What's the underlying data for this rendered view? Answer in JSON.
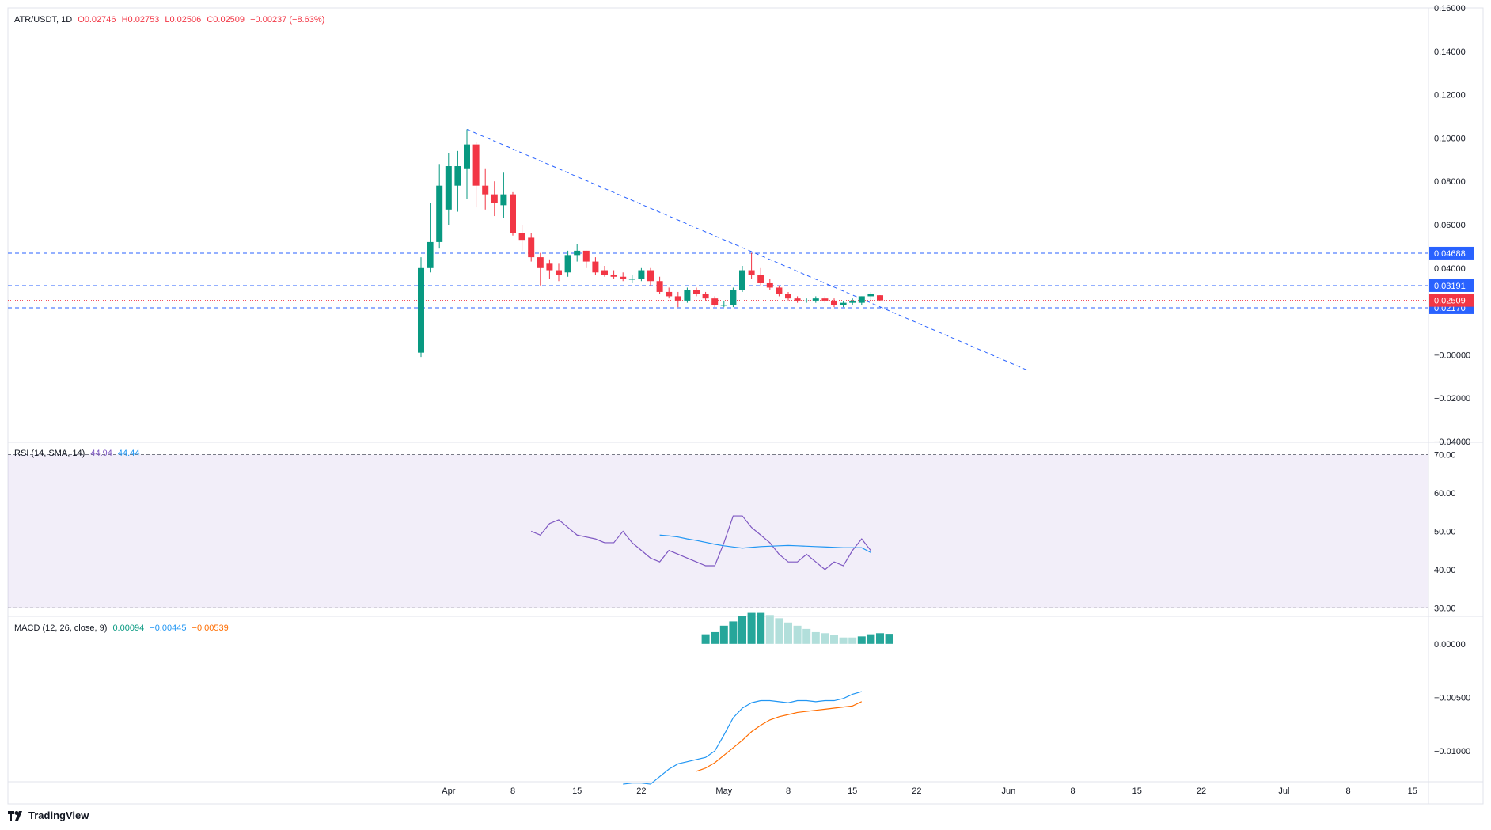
{
  "header": {
    "symbol": "ATR/USDT, 1D",
    "open": "O0.02746",
    "high": "H0.02753",
    "low": "L0.02506",
    "close": "C0.02509",
    "change": "−0.00237 (−8.63%)"
  },
  "rsi_legend": {
    "label": "RSI (14, SMA, 14)",
    "value": "44.94",
    "sma": "44.44"
  },
  "macd_legend": {
    "label": "MACD (12, 26, close, 9)",
    "hist": "0.00094",
    "macd": "−0.00445",
    "signal": "−0.00539"
  },
  "brand": "TradingView",
  "colors": {
    "up": "#089981",
    "down": "#f23645",
    "rsi": "#7e57c2",
    "rsi_sma": "#2196f3",
    "macd": "#2196f3",
    "signal": "#ff6d00",
    "hist_strong": "#26a69a",
    "hist_weak": "#b2dfdb",
    "level_line": "#2962ff",
    "rsi_band": "#7e57c2"
  },
  "chart_data": [
    {
      "type": "candlestick",
      "title": "ATR/USDT, 1D",
      "x_ticks": [
        "Apr",
        "8",
        "15",
        "22",
        "May",
        "8",
        "15",
        "22",
        "Jun",
        "8",
        "15",
        "22",
        "Jul",
        "8",
        "15"
      ],
      "y_ticks": [
        "0.16000",
        "0.14000",
        "0.12000",
        "0.10000",
        "0.08000",
        "0.06000",
        "0.04000",
        "−0.00000",
        "−0.02000",
        "−0.04000"
      ],
      "ylim": [
        -0.04,
        0.16
      ],
      "candles": [
        {
          "date": "Mar 29",
          "o": 0.001,
          "h": 0.045,
          "l": -0.001,
          "c": 0.04
        },
        {
          "date": "Mar 30",
          "o": 0.04,
          "h": 0.07,
          "l": 0.038,
          "c": 0.052
        },
        {
          "date": "Mar 31",
          "o": 0.052,
          "h": 0.088,
          "l": 0.049,
          "c": 0.078
        },
        {
          "date": "Apr 1",
          "o": 0.067,
          "h": 0.093,
          "l": 0.06,
          "c": 0.087
        },
        {
          "date": "Apr 2",
          "o": 0.078,
          "h": 0.094,
          "l": 0.066,
          "c": 0.087
        },
        {
          "date": "Apr 3",
          "o": 0.086,
          "h": 0.104,
          "l": 0.072,
          "c": 0.097
        },
        {
          "date": "Apr 4",
          "o": 0.097,
          "h": 0.098,
          "l": 0.068,
          "c": 0.078
        },
        {
          "date": "Apr 5",
          "o": 0.078,
          "h": 0.086,
          "l": 0.067,
          "c": 0.074
        },
        {
          "date": "Apr 6",
          "o": 0.074,
          "h": 0.08,
          "l": 0.064,
          "c": 0.07
        },
        {
          "date": "Apr 7",
          "o": 0.069,
          "h": 0.084,
          "l": 0.063,
          "c": 0.074
        },
        {
          "date": "Apr 8",
          "o": 0.074,
          "h": 0.075,
          "l": 0.055,
          "c": 0.056
        },
        {
          "date": "Apr 9",
          "o": 0.056,
          "h": 0.06,
          "l": 0.048,
          "c": 0.053
        },
        {
          "date": "Apr 10",
          "o": 0.054,
          "h": 0.056,
          "l": 0.043,
          "c": 0.045
        },
        {
          "date": "Apr 11",
          "o": 0.045,
          "h": 0.047,
          "l": 0.032,
          "c": 0.04
        },
        {
          "date": "Apr 12",
          "o": 0.042,
          "h": 0.044,
          "l": 0.035,
          "c": 0.039
        },
        {
          "date": "Apr 13",
          "o": 0.039,
          "h": 0.042,
          "l": 0.034,
          "c": 0.037
        },
        {
          "date": "Apr 14",
          "o": 0.038,
          "h": 0.048,
          "l": 0.036,
          "c": 0.046
        },
        {
          "date": "Apr 15",
          "o": 0.046,
          "h": 0.051,
          "l": 0.043,
          "c": 0.048
        },
        {
          "date": "Apr 16",
          "o": 0.048,
          "h": 0.048,
          "l": 0.04,
          "c": 0.043
        },
        {
          "date": "Apr 17",
          "o": 0.043,
          "h": 0.045,
          "l": 0.037,
          "c": 0.038
        },
        {
          "date": "Apr 18",
          "o": 0.039,
          "h": 0.041,
          "l": 0.036,
          "c": 0.037
        },
        {
          "date": "Apr 19",
          "o": 0.037,
          "h": 0.039,
          "l": 0.035,
          "c": 0.036
        },
        {
          "date": "Apr 20",
          "o": 0.036,
          "h": 0.038,
          "l": 0.034,
          "c": 0.035
        },
        {
          "date": "Apr 21",
          "o": 0.035,
          "h": 0.037,
          "l": 0.033,
          "c": 0.035
        },
        {
          "date": "Apr 22",
          "o": 0.035,
          "h": 0.04,
          "l": 0.034,
          "c": 0.039
        },
        {
          "date": "Apr 23",
          "o": 0.039,
          "h": 0.04,
          "l": 0.032,
          "c": 0.034
        },
        {
          "date": "Apr 24",
          "o": 0.034,
          "h": 0.036,
          "l": 0.028,
          "c": 0.029
        },
        {
          "date": "Apr 25",
          "o": 0.029,
          "h": 0.031,
          "l": 0.026,
          "c": 0.027
        },
        {
          "date": "Apr 26",
          "o": 0.027,
          "h": 0.029,
          "l": 0.022,
          "c": 0.025
        },
        {
          "date": "Apr 27",
          "o": 0.025,
          "h": 0.031,
          "l": 0.024,
          "c": 0.03
        },
        {
          "date": "Apr 28",
          "o": 0.03,
          "h": 0.031,
          "l": 0.027,
          "c": 0.028
        },
        {
          "date": "Apr 29",
          "o": 0.028,
          "h": 0.029,
          "l": 0.025,
          "c": 0.026
        },
        {
          "date": "Apr 30",
          "o": 0.026,
          "h": 0.027,
          "l": 0.022,
          "c": 0.023
        },
        {
          "date": "May 1",
          "o": 0.023,
          "h": 0.025,
          "l": 0.022,
          "c": 0.023
        },
        {
          "date": "May 2",
          "o": 0.023,
          "h": 0.031,
          "l": 0.022,
          "c": 0.03
        },
        {
          "date": "May 3",
          "o": 0.03,
          "h": 0.041,
          "l": 0.029,
          "c": 0.039
        },
        {
          "date": "May 4",
          "o": 0.039,
          "h": 0.047,
          "l": 0.035,
          "c": 0.037
        },
        {
          "date": "May 5",
          "o": 0.037,
          "h": 0.04,
          "l": 0.032,
          "c": 0.033
        },
        {
          "date": "May 6",
          "o": 0.033,
          "h": 0.035,
          "l": 0.03,
          "c": 0.031
        },
        {
          "date": "May 7",
          "o": 0.031,
          "h": 0.032,
          "l": 0.027,
          "c": 0.028
        },
        {
          "date": "May 8",
          "o": 0.028,
          "h": 0.029,
          "l": 0.025,
          "c": 0.026
        },
        {
          "date": "May 9",
          "o": 0.026,
          "h": 0.027,
          "l": 0.024,
          "c": 0.025
        },
        {
          "date": "May 10",
          "o": 0.025,
          "h": 0.026,
          "l": 0.024,
          "c": 0.025
        },
        {
          "date": "May 11",
          "o": 0.025,
          "h": 0.027,
          "l": 0.024,
          "c": 0.026
        },
        {
          "date": "May 12",
          "o": 0.026,
          "h": 0.027,
          "l": 0.024,
          "c": 0.025
        },
        {
          "date": "May 13",
          "o": 0.025,
          "h": 0.026,
          "l": 0.022,
          "c": 0.023
        },
        {
          "date": "May 14",
          "o": 0.023,
          "h": 0.025,
          "l": 0.022,
          "c": 0.024
        },
        {
          "date": "May 15",
          "o": 0.024,
          "h": 0.026,
          "l": 0.023,
          "c": 0.025
        },
        {
          "date": "May 16",
          "o": 0.024,
          "h": 0.027,
          "l": 0.023,
          "c": 0.027
        },
        {
          "date": "May 17",
          "o": 0.027,
          "h": 0.029,
          "l": 0.025,
          "c": 0.028
        },
        {
          "date": "May 18",
          "o": 0.02746,
          "h": 0.02753,
          "l": 0.02506,
          "c": 0.02509
        }
      ],
      "levels": [
        {
          "value": 0.04688,
          "label": "0.04688",
          "color": "#2962ff"
        },
        {
          "value": 0.03191,
          "label": "0.03191",
          "color": "#2962ff"
        },
        {
          "value": 0.0217,
          "label": "0.02170",
          "color": "#2962ff"
        }
      ],
      "last_price": {
        "value": 0.02509,
        "label": "0.02509",
        "color": "#f23645"
      },
      "trendline": {
        "from": {
          "date": "Apr 3",
          "value": 0.104
        },
        "to": {
          "date": "Jun 3",
          "value": -0.007
        }
      }
    },
    {
      "type": "line",
      "title": "RSI (14, SMA, 14)",
      "y_ticks": [
        "70.00",
        "60.00",
        "50.00",
        "40.00",
        "30.00"
      ],
      "ylim": [
        28,
        73
      ],
      "band": [
        30,
        70
      ],
      "series": [
        {
          "name": "RSI",
          "start_date": "Apr 10",
          "values": [
            50,
            49,
            52,
            53,
            51,
            49,
            48.5,
            48,
            47,
            47,
            50,
            47,
            45,
            43,
            42,
            45,
            44,
            43,
            42,
            41,
            41,
            47,
            54,
            54,
            51,
            49,
            47,
            44,
            42,
            42,
            44,
            42,
            40,
            42,
            41,
            45,
            48,
            44.94
          ]
        },
        {
          "name": "SMA",
          "start_date": "Apr 24",
          "values": [
            49,
            48.8,
            48.5,
            48,
            47.6,
            47.1,
            46.6,
            46.2,
            45.9,
            45.6,
            45.8,
            46,
            46.1,
            46.2,
            46.3,
            46.2,
            46.1,
            46,
            45.9,
            45.8,
            45.7,
            45.7,
            45.7,
            44.44
          ]
        }
      ]
    },
    {
      "type": "bar",
      "title": "MACD (12, 26, close, 9)",
      "y_ticks": [
        "0.00000",
        "−0.00500",
        "−0.01000"
      ],
      "ylim": [
        -0.0128,
        0.0025
      ],
      "histogram": {
        "start_date": "Apr 29",
        "values": [
          0.0009,
          0.0011,
          0.0017,
          0.0021,
          0.0026,
          0.0029,
          0.0029,
          0.0027,
          0.0024,
          0.002,
          0.0017,
          0.0014,
          0.0011,
          0.001,
          0.0008,
          0.0006,
          0.0006,
          0.0007,
          0.0009,
          0.001,
          0.00094
        ],
        "strong": [
          true,
          true,
          true,
          true,
          true,
          true,
          true,
          false,
          false,
          false,
          false,
          false,
          false,
          false,
          false,
          false,
          false,
          true,
          true,
          true,
          true
        ]
      },
      "series": [
        {
          "name": "MACD",
          "start_date": "Apr 20",
          "values": [
            -0.0131,
            -0.013,
            -0.013,
            -0.0131,
            -0.0124,
            -0.0117,
            -0.0112,
            -0.011,
            -0.0108,
            -0.0106,
            -0.01,
            -0.0085,
            -0.0069,
            -0.006,
            -0.0055,
            -0.0053,
            -0.0053,
            -0.0054,
            -0.0055,
            -0.0053,
            -0.0053,
            -0.0054,
            -0.0053,
            -0.0053,
            -0.0051,
            -0.0047,
            -0.00445
          ]
        },
        {
          "name": "Signal",
          "start_date": "Apr 28",
          "values": [
            -0.0119,
            -0.0116,
            -0.0111,
            -0.0104,
            -0.0097,
            -0.009,
            -0.0082,
            -0.0076,
            -0.0071,
            -0.0068,
            -0.0066,
            -0.0064,
            -0.0063,
            -0.0062,
            -0.0061,
            -0.006,
            -0.0059,
            -0.0058,
            -0.00539
          ]
        }
      ]
    }
  ]
}
